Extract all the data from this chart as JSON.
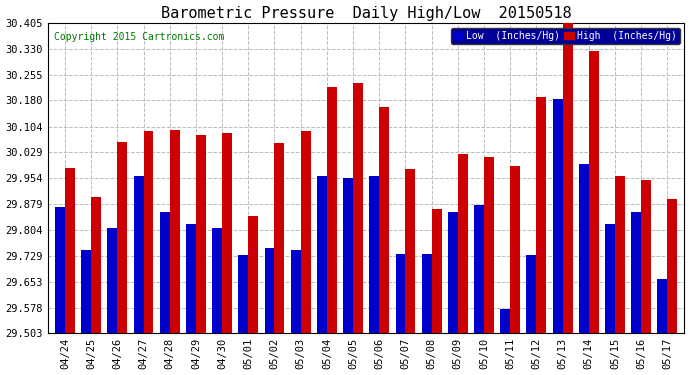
{
  "title": "Barometric Pressure  Daily High/Low  20150518",
  "copyright": "Copyright 2015 Cartronics.com",
  "legend_low": "Low  (Inches/Hg)",
  "legend_high": "High  (Inches/Hg)",
  "dates": [
    "04/24",
    "04/25",
    "04/26",
    "04/27",
    "04/28",
    "04/29",
    "04/30",
    "05/01",
    "05/02",
    "05/03",
    "05/04",
    "05/05",
    "05/06",
    "05/07",
    "05/08",
    "05/09",
    "05/10",
    "05/11",
    "05/12",
    "05/13",
    "05/14",
    "05/15",
    "05/16",
    "05/17"
  ],
  "low": [
    29.87,
    29.745,
    29.81,
    29.96,
    29.855,
    29.82,
    29.81,
    29.73,
    29.75,
    29.745,
    29.96,
    29.955,
    29.96,
    29.735,
    29.735,
    29.855,
    29.875,
    29.575,
    29.73,
    30.185,
    29.995,
    29.82,
    29.855,
    29.66
  ],
  "high": [
    29.985,
    29.9,
    30.06,
    30.09,
    30.095,
    30.08,
    30.085,
    29.845,
    30.055,
    30.09,
    30.22,
    30.23,
    30.16,
    29.98,
    29.865,
    30.025,
    30.015,
    29.99,
    30.19,
    30.405,
    30.325,
    29.96,
    29.95,
    29.895
  ],
  "ylim_min": 29.503,
  "ylim_max": 30.405,
  "yticks": [
    29.503,
    29.578,
    29.653,
    29.729,
    29.804,
    29.879,
    29.954,
    30.029,
    30.104,
    30.18,
    30.255,
    30.33,
    30.405
  ],
  "bar_width": 0.38,
  "low_color": "#0000cc",
  "high_color": "#cc0000",
  "bg_color": "#ffffff",
  "grid_color": "#bbbbbb",
  "title_fontsize": 11,
  "copyright_fontsize": 7,
  "tick_fontsize": 7.5
}
